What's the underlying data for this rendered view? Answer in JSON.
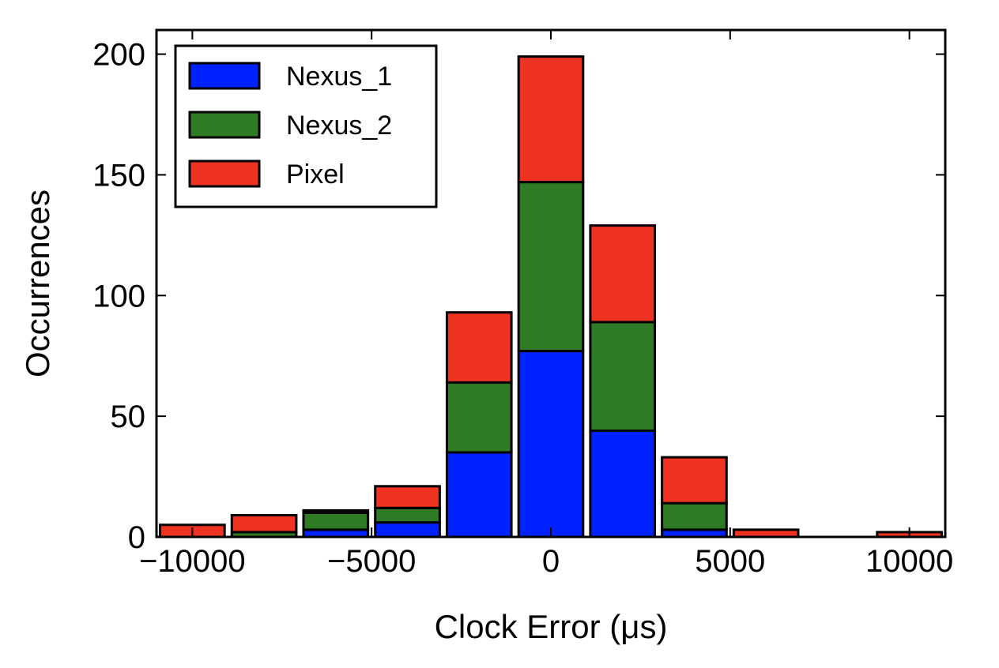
{
  "chart_data": {
    "type": "bar",
    "stacked": true,
    "xlabel": "Clock Error (μs)",
    "ylabel": "Occurrences",
    "xlim": [
      -11000,
      11000
    ],
    "ylim": [
      0,
      210
    ],
    "x_ticks": [
      -10000,
      -5000,
      0,
      5000,
      10000
    ],
    "x_tick_labels": [
      "−10000",
      "−5000",
      "0",
      "5000",
      "10000"
    ],
    "y_ticks": [
      0,
      50,
      100,
      150,
      200
    ],
    "y_tick_labels": [
      "0",
      "50",
      "100",
      "150",
      "200"
    ],
    "bin_width": 2000,
    "bin_centers": [
      -10000,
      -8000,
      -6000,
      -4000,
      -2000,
      0,
      2000,
      4000,
      6000,
      8000,
      10000
    ],
    "grid": false,
    "legend_position": "top-left",
    "series": [
      {
        "name": "Nexus_1",
        "color": "#0022ff",
        "values": [
          0,
          0,
          3,
          6,
          35,
          77,
          44,
          3,
          0,
          0,
          0
        ]
      },
      {
        "name": "Nexus_2",
        "color": "#2e7a25",
        "values": [
          0,
          2,
          7,
          6,
          29,
          70,
          45,
          11,
          0,
          0,
          0
        ]
      },
      {
        "name": "Pixel",
        "color": "#ee3322",
        "values": [
          5,
          7,
          1,
          9,
          29,
          52,
          40,
          19,
          3,
          0,
          2
        ]
      }
    ]
  }
}
